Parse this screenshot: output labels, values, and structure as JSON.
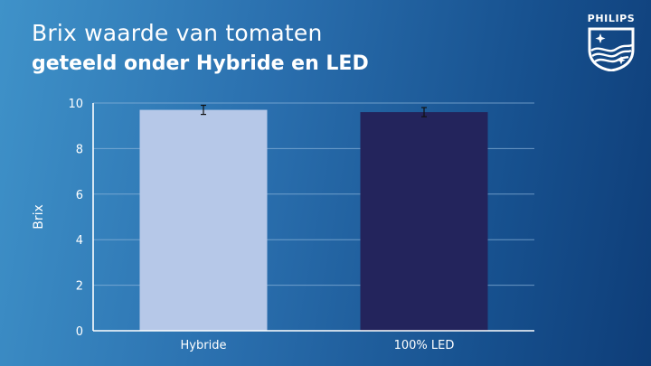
{
  "header": {
    "title_line1": "Brix waarde van tomaten",
    "title_line2": "geteeld onder Hybride en LED"
  },
  "logo": {
    "brand": "PHILIPS",
    "icon": "philips-shield-icon"
  },
  "colors": {
    "hybride_bar": "#b6c8e8",
    "led_bar": "#23245c",
    "gridline": "#8fb6dc",
    "text": "#ffffff"
  },
  "chart_data": {
    "type": "bar",
    "categories": [
      "Hybride",
      "100% LED"
    ],
    "values": [
      9.7,
      9.6
    ],
    "error": [
      0.2,
      0.2
    ],
    "ylabel": "Brix",
    "ylim": [
      0,
      10
    ],
    "yticks": [
      0,
      2,
      4,
      6,
      8,
      10
    ],
    "grid": true
  }
}
